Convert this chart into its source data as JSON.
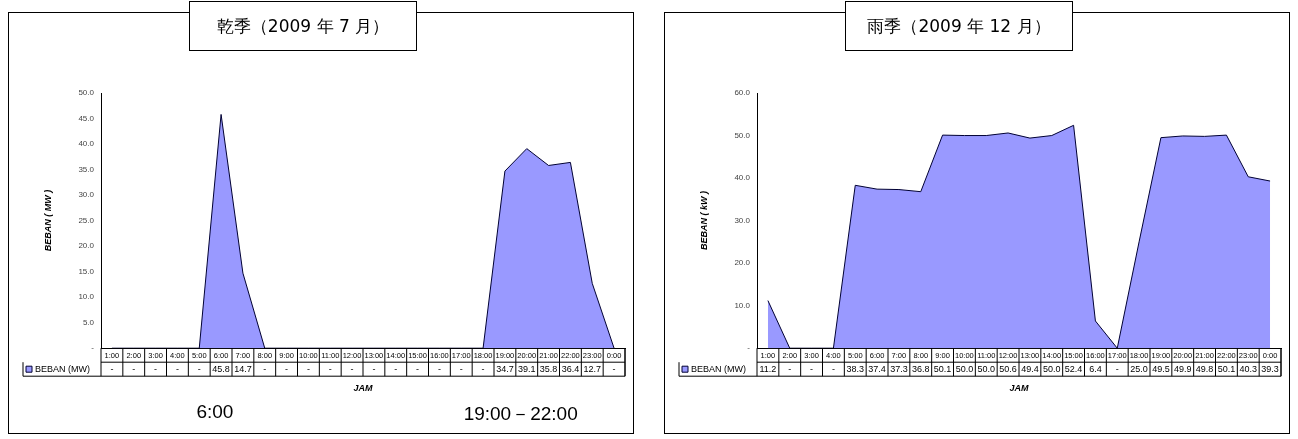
{
  "chart_data": [
    {
      "type": "area",
      "title": "乾季（2009 年 7 月）",
      "xlabel": "JAM",
      "ylabel": "BEBAN ( MW )",
      "categories": [
        "1:00",
        "2:00",
        "3:00",
        "4:00",
        "5:00",
        "6:00",
        "7:00",
        "8:00",
        "9:00",
        "10:00",
        "11:00",
        "12:00",
        "13:00",
        "14:00",
        "15:00",
        "16:00",
        "17:00",
        "18:00",
        "19:00",
        "20:00",
        "21:00",
        "22:00",
        "23:00",
        "0:00"
      ],
      "series": [
        {
          "name": "BEBAN (MW)",
          "color": "#9999ff",
          "values": [
            0,
            0,
            0,
            0,
            0,
            45.8,
            14.7,
            0,
            0,
            0,
            0,
            0,
            0,
            0,
            0,
            0,
            0,
            0,
            34.7,
            39.1,
            35.8,
            36.4,
            12.7,
            0
          ],
          "value_labels": [
            "-",
            "-",
            "-",
            "-",
            "-",
            "45.8",
            "14.7",
            "-",
            "-",
            "-",
            "-",
            "-",
            "-",
            "-",
            "-",
            "-",
            "-",
            "-",
            "34.7",
            "39.1",
            "35.8",
            "36.4",
            "12.7",
            "-"
          ]
        }
      ],
      "ylim": [
        0,
        50
      ],
      "yticks": [
        {
          "value": 0,
          "label": "-"
        },
        {
          "value": 5,
          "label": "5.0"
        },
        {
          "value": 10,
          "label": "10.0"
        },
        {
          "value": 15,
          "label": "15.0"
        },
        {
          "value": 20,
          "label": "20.0"
        },
        {
          "value": 25,
          "label": "25.0"
        },
        {
          "value": 30,
          "label": "30.0"
        },
        {
          "value": 35,
          "label": "35.0"
        },
        {
          "value": 40,
          "label": "40.0"
        },
        {
          "value": 45,
          "label": "45.0"
        },
        {
          "value": 50,
          "label": "50.0"
        }
      ],
      "grid": false,
      "legend": "bottom left",
      "marker": "none",
      "annotations": [
        "6:00",
        "19:00－22:00"
      ]
    },
    {
      "type": "area",
      "title": "雨季（2009 年 12 月）",
      "xlabel": "JAM",
      "ylabel": "BEBAN ( kW )",
      "categories": [
        "1:00",
        "2:00",
        "3:00",
        "4:00",
        "5:00",
        "6:00",
        "7:00",
        "8:00",
        "9:00",
        "10:00",
        "11:00",
        "12:00",
        "13:00",
        "14:00",
        "15:00",
        "16:00",
        "17:00",
        "18:00",
        "19:00",
        "20:00",
        "21:00",
        "22:00",
        "23:00",
        "0:00"
      ],
      "series": [
        {
          "name": "BEBAN (MW)",
          "color": "#9999ff",
          "values": [
            11.2,
            0,
            0,
            0,
            38.3,
            37.4,
            37.3,
            36.8,
            50.1,
            50.0,
            50.0,
            50.6,
            49.4,
            50.0,
            52.4,
            6.4,
            0,
            25.0,
            49.5,
            49.9,
            49.8,
            50.1,
            40.3,
            39.3
          ],
          "value_labels": [
            "11.2",
            "-",
            "-",
            "-",
            "38.3",
            "37.4",
            "37.3",
            "36.8",
            "50.1",
            "50.0",
            "50.0",
            "50.6",
            "49.4",
            "50.0",
            "52.4",
            "6.4",
            "-",
            "25.0",
            "49.5",
            "49.9",
            "49.8",
            "50.1",
            "40.3",
            "39.3"
          ]
        }
      ],
      "ylim": [
        0,
        60
      ],
      "yticks": [
        {
          "value": 0,
          "label": "-"
        },
        {
          "value": 10,
          "label": "10.0"
        },
        {
          "value": 20,
          "label": "20.0"
        },
        {
          "value": 30,
          "label": "30.0"
        },
        {
          "value": 40,
          "label": "40.0"
        },
        {
          "value": 50,
          "label": "50.0"
        },
        {
          "value": 60,
          "label": "60.0"
        }
      ],
      "grid": false,
      "legend": "bottom left",
      "marker": "none"
    }
  ]
}
